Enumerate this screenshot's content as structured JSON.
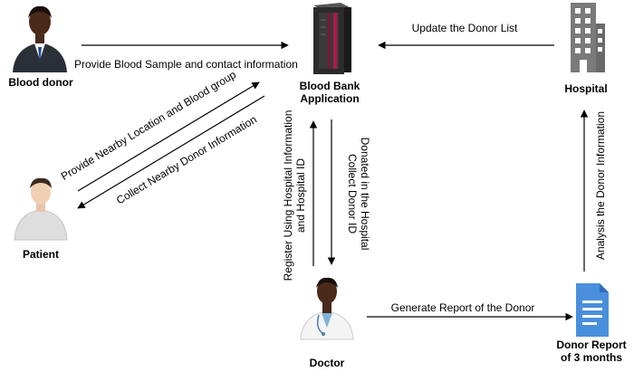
{
  "nodes": {
    "blood_donor": {
      "label": "Blood donor",
      "icon": "blood-donor-person-icon"
    },
    "blood_bank": {
      "label_line1": "Blood Bank",
      "label_line2": "Application",
      "icon": "server-rack-icon"
    },
    "hospital": {
      "label": "Hospital",
      "icon": "hospital-building-icon"
    },
    "patient": {
      "label": "Patient",
      "icon": "patient-person-icon"
    },
    "doctor": {
      "label": "Doctor",
      "icon": "doctor-person-icon"
    },
    "report": {
      "label_line1": "Donor Report",
      "label_line2": "of 3 months",
      "icon": "document-icon"
    }
  },
  "edges": {
    "donor_to_bank": "Provide Blood Sample and contact information",
    "hospital_to_bank": "Update the Donor List",
    "patient_to_bank": "Provide Nearby Location and Blood group",
    "bank_to_patient": "Collect Nearby Donor Information",
    "doctor_to_bank_line1": "Register Using Hospital Information",
    "doctor_to_bank_line2": "and Hospital ID",
    "bank_to_doctor_line1": "Collect Donor ID",
    "bank_to_doctor_line2": "Donated in the Hospital",
    "doctor_to_report": "Generate Report of the Donor",
    "report_to_hospital": "Analysis the Donor Information"
  },
  "colors": {
    "server_body": "#2b2b2b",
    "server_accent": "#b0174a",
    "building": "#7a7a7a",
    "document": "#4a8fdc",
    "skin": "#4a2a1a",
    "suit": "#2a2f38"
  }
}
